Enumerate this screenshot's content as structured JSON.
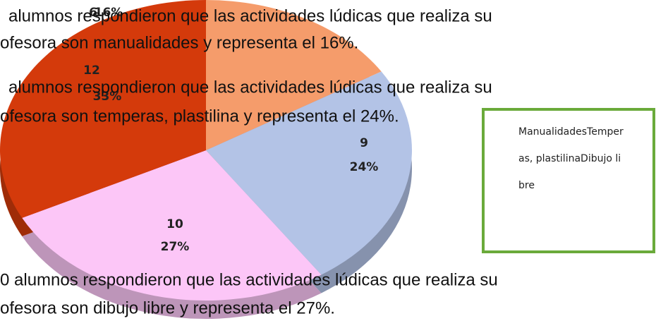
{
  "chart_data": {
    "type": "pie",
    "categories": [
      "Manualidades",
      "Temperas, plastilina",
      "Dibujo libre",
      null
    ],
    "values": [
      6,
      9,
      10,
      12
    ],
    "percent_labels": [
      "16%",
      "24%",
      "27%",
      "33%"
    ],
    "colors": [
      "#f59c6b",
      "#b3c3e6",
      "#fcc6f7",
      "#d43a0b"
    ]
  },
  "paragraphs": [
    "alumnos respondieron que las actividades lúdicas que realiza su",
    "ofesora son manualidades y representa el 16%.",
    "alumnos respondieron que las actividades lúdicas que realiza su",
    "ofesora son temperas, plastilina y representa el 24%.",
    "0 alumnos respondieron que las actividades lúdicas que realiza su",
    "ofesora son dibujo libre y representa el 27%."
  ]
}
